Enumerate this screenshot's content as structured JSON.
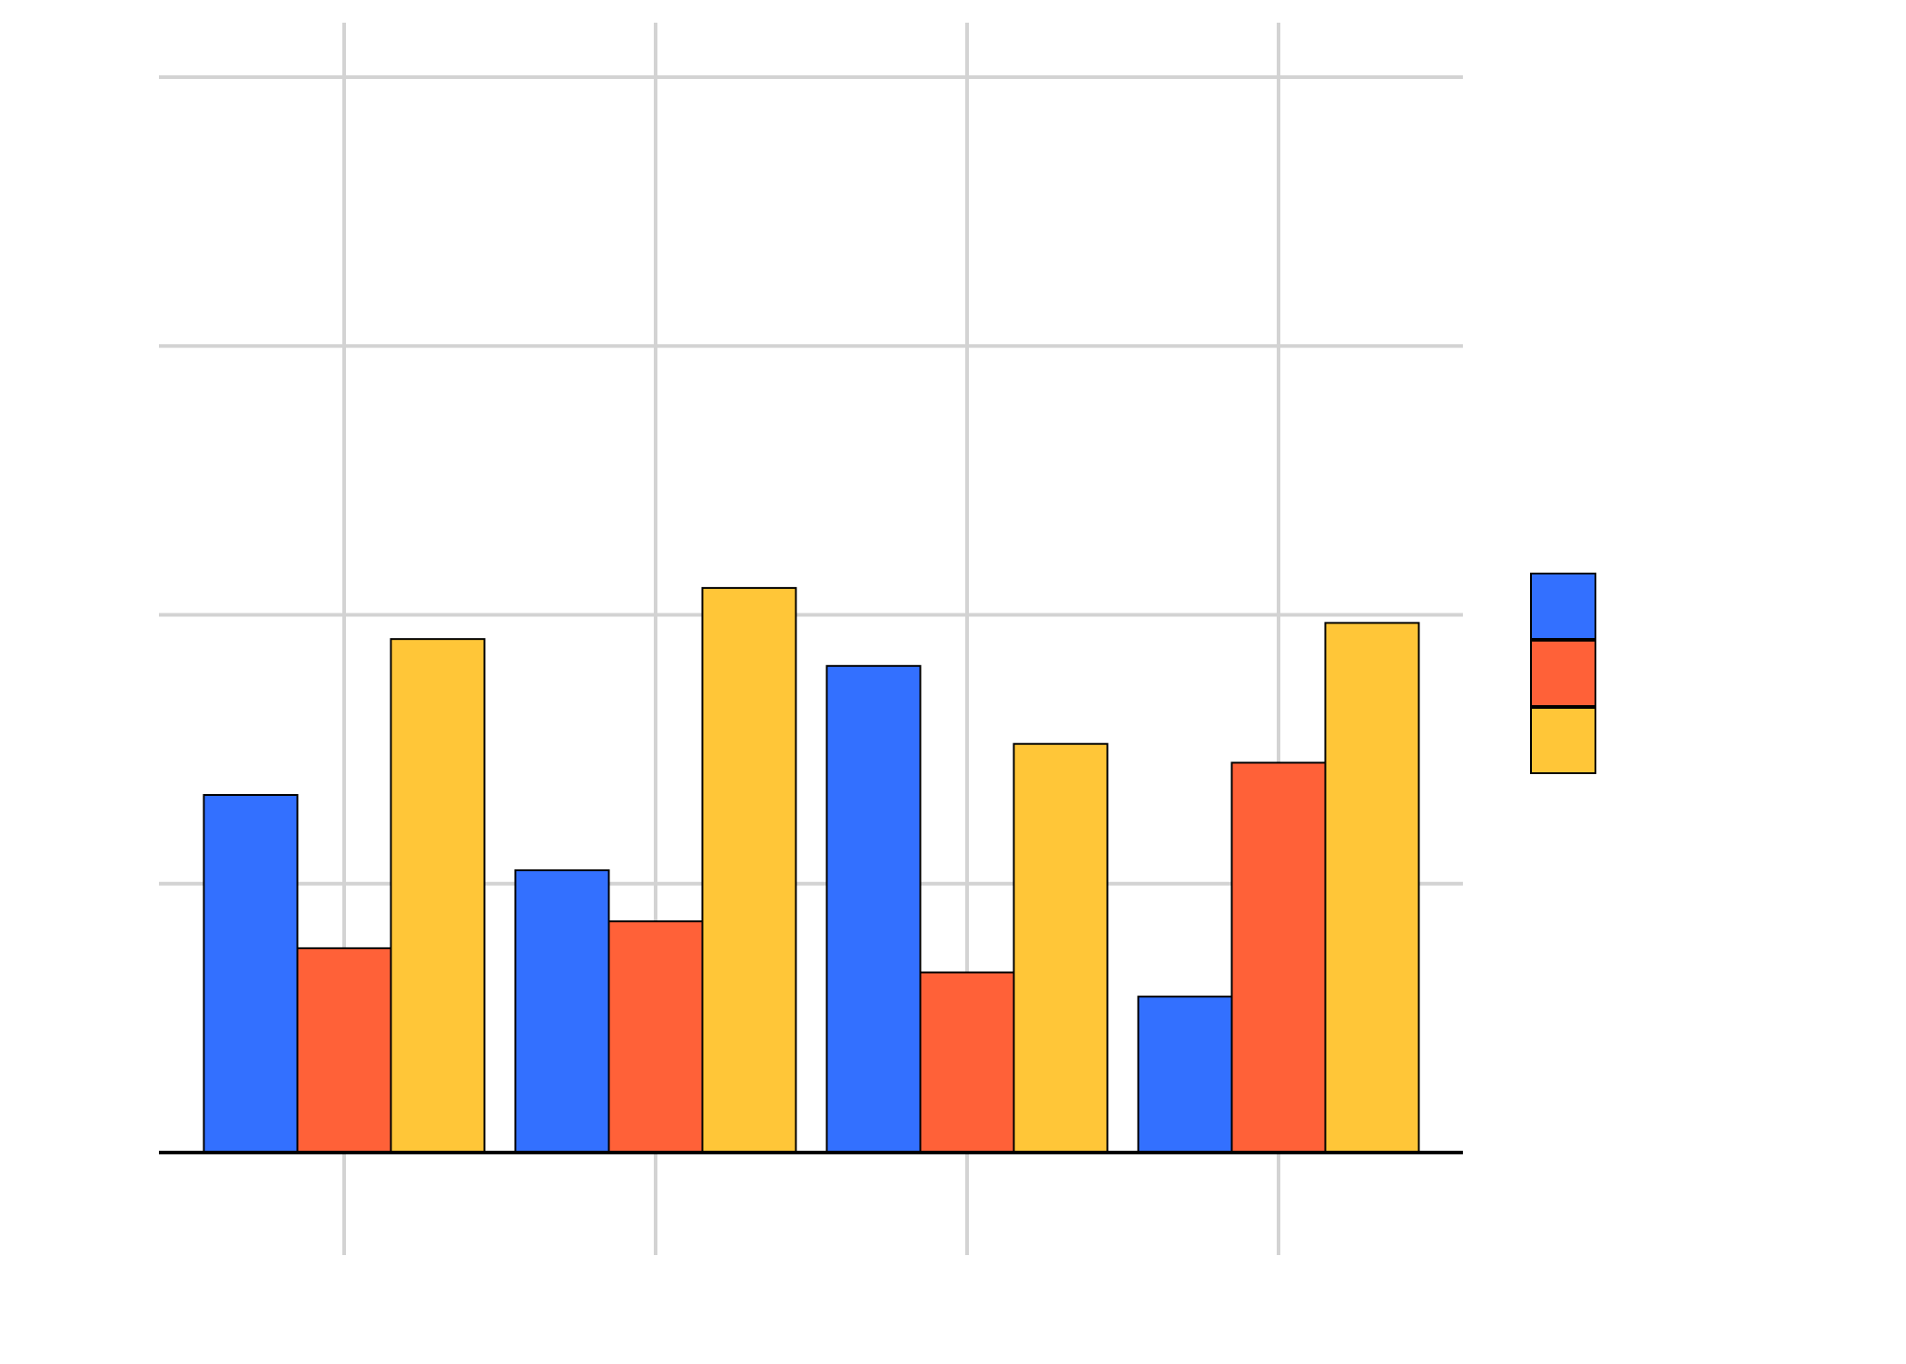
{
  "chart_data": {
    "type": "bar",
    "title": "",
    "xlabel": "",
    "ylabel": "",
    "categories": [
      "",
      "",
      "",
      ""
    ],
    "ylim": [
      0,
      4.2
    ],
    "yticks": [
      0,
      1,
      2,
      3,
      4
    ],
    "grid": true,
    "legend_position": "right",
    "series": [
      {
        "color": "#3370ff",
        "values": [
          1.33,
          1.05,
          1.81,
          0.58
        ]
      },
      {
        "color": "#ff6138",
        "values": [
          0.76,
          0.86,
          0.67,
          1.45
        ]
      },
      {
        "color": "#ffc638",
        "values": [
          1.91,
          2.1,
          1.52,
          1.97
        ]
      }
    ],
    "colors": {
      "grid": "#d3d3d3",
      "axis": "#000000",
      "bar_edge": "#000000",
      "background": "#ffffff"
    }
  }
}
